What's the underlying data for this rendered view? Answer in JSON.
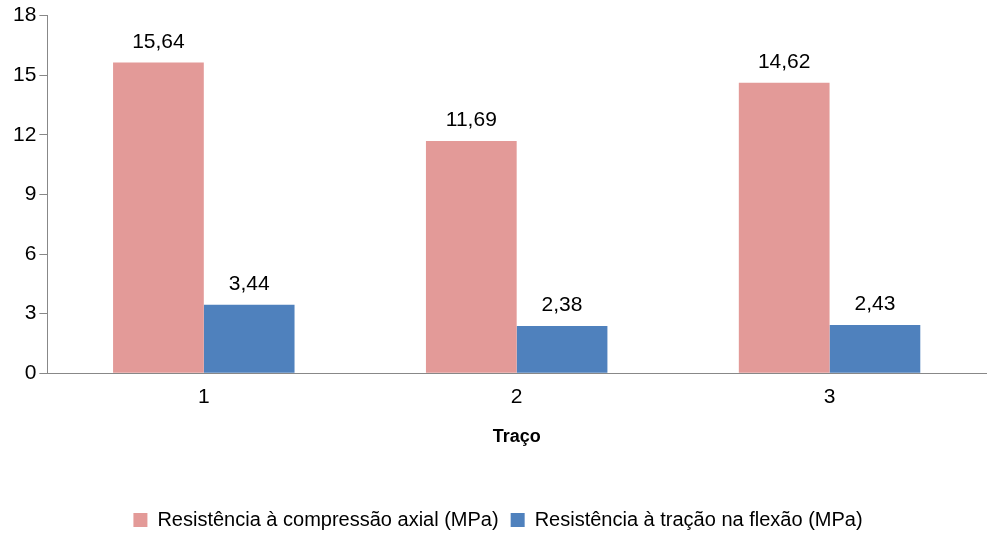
{
  "chart_data": {
    "type": "bar",
    "xlabel": "Traço",
    "categories": [
      "1",
      "2",
      "3"
    ],
    "series": [
      {
        "name": "Resistência à compressão axial (MPa)",
        "color": "#e39a98",
        "values": [
          15.64,
          11.69,
          14.62
        ],
        "value_labels": [
          "15,64",
          "11,69",
          "14,62"
        ]
      },
      {
        "name": "Resistência à tração na flexão (MPa)",
        "color": "#4f81bd",
        "values": [
          3.44,
          2.38,
          2.43
        ],
        "value_labels": [
          "3,44",
          "2,38",
          "2,43"
        ]
      }
    ],
    "ylim": [
      0,
      18
    ],
    "yticks": [
      0,
      3,
      6,
      9,
      12,
      15,
      18
    ],
    "grid": false,
    "legend": "bottom"
  }
}
